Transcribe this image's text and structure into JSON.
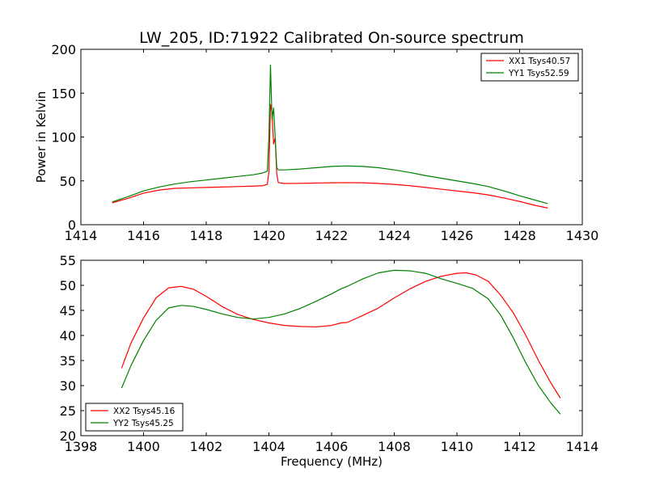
{
  "chart_data": [
    {
      "type": "line",
      "title": "LW_205, ID:71922 Calibrated On-source spectrum",
      "xlabel": "",
      "ylabel": "Power in Kelvin",
      "xlim": [
        1414,
        1430
      ],
      "ylim": [
        0,
        200
      ],
      "xticks": [
        1414,
        1416,
        1418,
        1420,
        1422,
        1424,
        1426,
        1428,
        1430
      ],
      "yticks": [
        0,
        50,
        100,
        150,
        200
      ],
      "legend_position": "top-right",
      "grid": false,
      "series": [
        {
          "name": "XX1 Tsys40.57",
          "color": "#ff0000",
          "x": [
            1415.0,
            1415.5,
            1416.0,
            1416.5,
            1417.0,
            1417.5,
            1418.0,
            1418.5,
            1419.0,
            1419.5,
            1419.8,
            1419.95,
            1420.0,
            1420.05,
            1420.1,
            1420.15,
            1420.2,
            1420.25,
            1420.3,
            1420.5,
            1421.0,
            1421.5,
            1422.0,
            1422.5,
            1423.0,
            1423.5,
            1424.0,
            1424.5,
            1425.0,
            1425.5,
            1426.0,
            1426.5,
            1427.0,
            1427.5,
            1428.0,
            1428.5,
            1428.9
          ],
          "y": [
            25,
            30,
            36,
            39.5,
            41.5,
            42,
            42.5,
            43,
            43.5,
            44,
            44.5,
            46,
            60,
            137,
            128,
            92,
            99,
            58,
            48,
            47,
            47.2,
            47.5,
            47.8,
            48,
            47.8,
            47,
            46,
            44.5,
            42.5,
            40.5,
            38.5,
            36.5,
            34,
            30.5,
            26.5,
            22,
            19
          ]
        },
        {
          "name": "YY1 Tsys52.59",
          "color": "#008000",
          "x": [
            1415.0,
            1415.5,
            1416.0,
            1416.5,
            1417.0,
            1417.5,
            1418.0,
            1418.5,
            1419.0,
            1419.5,
            1419.8,
            1419.95,
            1420.0,
            1420.05,
            1420.1,
            1420.15,
            1420.2,
            1420.25,
            1420.3,
            1420.5,
            1421.0,
            1421.5,
            1422.0,
            1422.5,
            1423.0,
            1423.5,
            1424.0,
            1424.5,
            1425.0,
            1425.5,
            1426.0,
            1426.5,
            1427.0,
            1427.5,
            1428.0,
            1428.5,
            1428.9
          ],
          "y": [
            26,
            32,
            38.5,
            43,
            46.5,
            49,
            51,
            53,
            55,
            57,
            59,
            61,
            100,
            182,
            120,
            133,
            100,
            65,
            62.5,
            62.5,
            63.5,
            65,
            66.5,
            67,
            66.5,
            65,
            62.5,
            59.5,
            56,
            53,
            50,
            47,
            43.5,
            38.5,
            33,
            28,
            24
          ]
        }
      ]
    },
    {
      "type": "line",
      "title": "",
      "xlabel": "Frequency (MHz)",
      "ylabel": "",
      "xlim": [
        1398,
        1414
      ],
      "ylim": [
        20,
        55
      ],
      "xticks": [
        1398,
        1400,
        1402,
        1404,
        1406,
        1408,
        1410,
        1412,
        1414
      ],
      "yticks": [
        20,
        25,
        30,
        35,
        40,
        45,
        50,
        55
      ],
      "legend_position": "bottom-left",
      "grid": false,
      "series": [
        {
          "name": "XX2 Tsys45.16",
          "color": "#ff0000",
          "x": [
            1399.3,
            1399.6,
            1400.0,
            1400.4,
            1400.8,
            1401.2,
            1401.6,
            1402.0,
            1402.5,
            1403.0,
            1403.5,
            1404.0,
            1404.5,
            1405.0,
            1405.5,
            1406.0,
            1406.3,
            1406.5,
            1407.0,
            1407.5,
            1408.0,
            1408.5,
            1409.0,
            1409.5,
            1410.0,
            1410.3,
            1410.6,
            1411.0,
            1411.4,
            1411.8,
            1412.2,
            1412.6,
            1413.0,
            1413.3
          ],
          "y": [
            33.5,
            38.5,
            43.5,
            47.5,
            49.5,
            49.8,
            49.2,
            47.8,
            45.8,
            44.2,
            43.2,
            42.5,
            42,
            41.8,
            41.7,
            42,
            42.5,
            42.6,
            44,
            45.5,
            47.5,
            49.3,
            50.8,
            51.8,
            52.4,
            52.5,
            52.1,
            50.8,
            48,
            44.5,
            40,
            35,
            30.5,
            27.5
          ]
        },
        {
          "name": "YY2 Tsys45.25",
          "color": "#008000",
          "x": [
            1399.3,
            1399.6,
            1400.0,
            1400.4,
            1400.8,
            1401.2,
            1401.6,
            1402.0,
            1402.5,
            1403.0,
            1403.5,
            1404.0,
            1404.5,
            1405.0,
            1405.5,
            1406.0,
            1406.3,
            1406.5,
            1407.0,
            1407.5,
            1408.0,
            1408.5,
            1409.0,
            1409.5,
            1410.0,
            1410.5,
            1411.0,
            1411.4,
            1411.8,
            1412.2,
            1412.6,
            1413.0,
            1413.3
          ],
          "y": [
            29.5,
            34,
            39,
            43,
            45.5,
            46,
            45.8,
            45.2,
            44.3,
            43.6,
            43.3,
            43.6,
            44.3,
            45.4,
            46.8,
            48.3,
            49.3,
            49.8,
            51.3,
            52.5,
            53,
            52.9,
            52.4,
            51.3,
            50.4,
            49.4,
            47.3,
            44,
            39.5,
            34.5,
            30,
            26.5,
            24.3
          ]
        }
      ]
    }
  ]
}
